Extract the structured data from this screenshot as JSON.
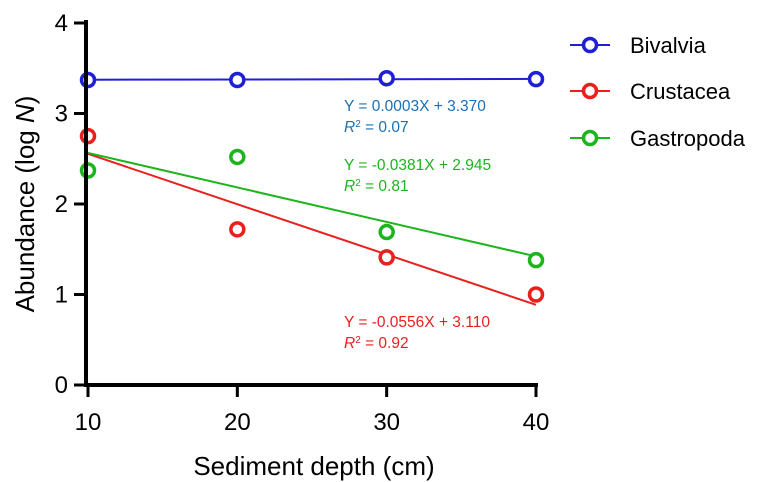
{
  "chart_data": {
    "type": "scatter",
    "xlabel": "Sediment depth (cm)",
    "ylabel": {
      "main": "Abundance (log ",
      "italic": "N",
      "close": ")"
    },
    "xlim": [
      10,
      40
    ],
    "ylim": [
      0,
      4
    ],
    "xticks": [
      10,
      20,
      30,
      40
    ],
    "yticks": [
      0,
      1,
      2,
      3,
      4
    ],
    "grid": false,
    "legend_position": "right",
    "series": [
      {
        "name": "Bivalvia",
        "color": "#1f1fd6",
        "x": [
          10,
          20,
          30,
          40
        ],
        "y": [
          3.37,
          3.37,
          3.39,
          3.38
        ],
        "fit": {
          "slope": 0.0003,
          "intercept": 3.37
        },
        "equation": "Y = 0.0003X + 3.370",
        "r2_label": "R",
        "r2_value": " = 0.07",
        "equation_color": "#1a6fb5"
      },
      {
        "name": "Crustacea",
        "color": "#e8201e",
        "x": [
          10,
          20,
          30,
          40
        ],
        "y": [
          2.75,
          1.72,
          1.41,
          1.0
        ],
        "fit": {
          "slope": -0.0556,
          "intercept": 3.11
        },
        "equation": "Y = -0.0556X + 3.110",
        "r2_label": "R",
        "r2_value": " = 0.92",
        "equation_color": "#e8201e"
      },
      {
        "name": "Gastropoda",
        "color": "#1db41d",
        "x": [
          10,
          20,
          30,
          40
        ],
        "y": [
          2.37,
          2.52,
          1.69,
          1.38
        ],
        "fit": {
          "slope": -0.0381,
          "intercept": 2.945
        },
        "equation": "Y = -0.0381X + 2.945",
        "r2_label": "R",
        "r2_value": " = 0.81",
        "equation_color": "#1db41d"
      }
    ]
  }
}
